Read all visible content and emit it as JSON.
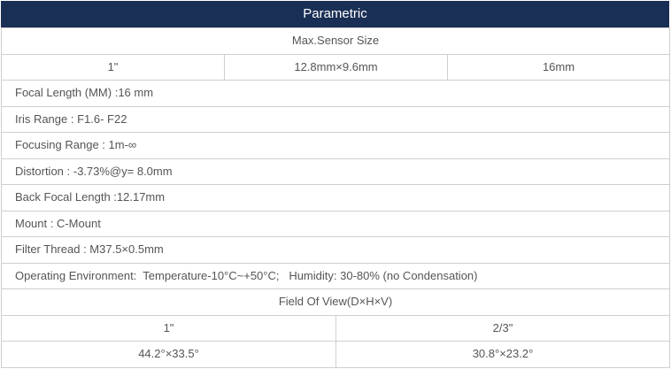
{
  "title": "Parametric",
  "sensor": {
    "heading": "Max.Sensor Size",
    "values": [
      "1\"",
      "12.8mm×9.6mm",
      "16mm"
    ]
  },
  "specs": [
    "Focal Length (MM) :16 mm",
    "Iris Range : F1.6- F22",
    "Focusing Range : 1m-∞",
    "Distortion : -3.73%@y= 8.0mm",
    "Back Focal Length :12.17mm",
    "Mount : C-Mount",
    "Filter Thread : M37.5×0.5mm",
    "Operating Environment:  Temperature-10°C~+50°C;   Humidity: 30-80% (no Condensation)"
  ],
  "fov": {
    "heading": "Field Of View(D×H×V)",
    "sizes": [
      "1\"",
      "2/3\""
    ],
    "values": [
      "44.2°×33.5°",
      "30.8°×23.2°"
    ]
  },
  "colors": {
    "header_bg": "#1a2f55",
    "text": "#555555",
    "border": "#cfcfcf"
  }
}
